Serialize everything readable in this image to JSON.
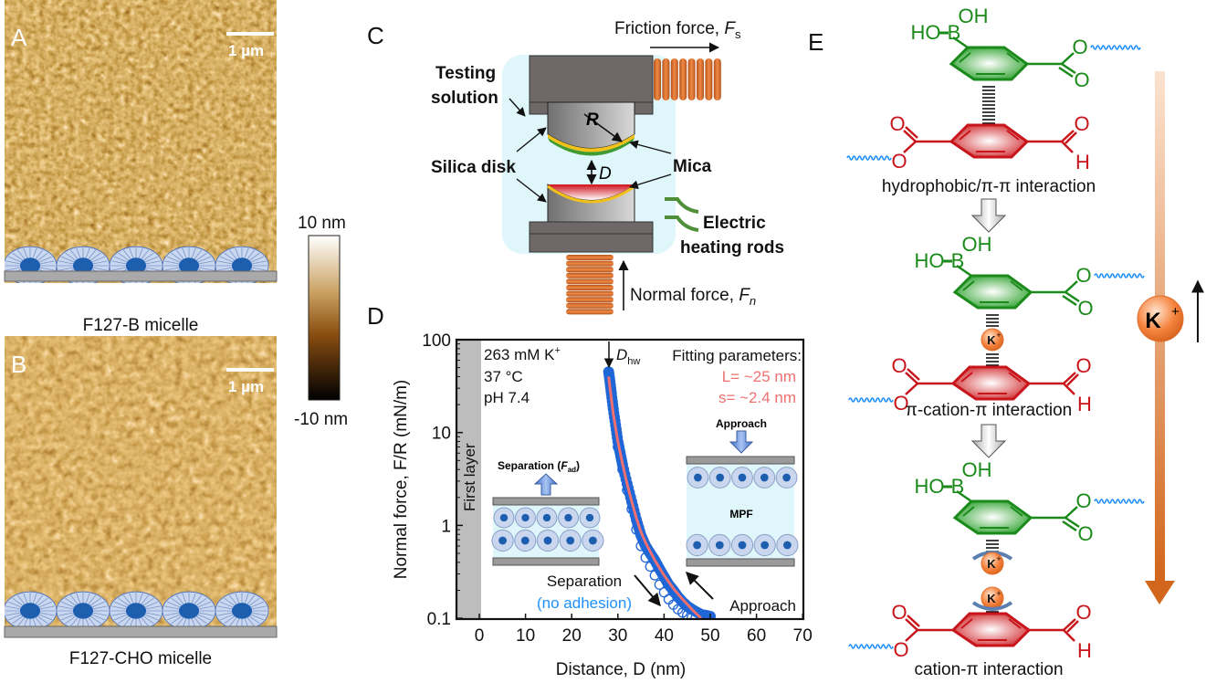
{
  "panels": {
    "A": {
      "label": "A",
      "scale_bar": "1 µm",
      "caption": "F127-B micelle"
    },
    "B": {
      "label": "B",
      "scale_bar": "1 µm",
      "caption": "F127-CHO micelle"
    },
    "colorbar": {
      "max": "10 nm",
      "min": "-10 nm",
      "colors": [
        "#ffffff",
        "#b07a2a",
        "#000000"
      ]
    },
    "C": {
      "label": "C",
      "friction": "Friction force, ",
      "friction_sym": "F",
      "friction_sub": "s",
      "testing1": "Testing",
      "testing2": "solution",
      "silica": "Silica disk",
      "mica": "Mica",
      "R": "R",
      "D": "D",
      "heating1": "Electric",
      "heating2": "heating rods",
      "normal": "Normal force, ",
      "normal_sym": "F",
      "normal_sub": "n"
    },
    "D": {
      "label": "D",
      "cond1": "263 mM K",
      "cond1_sup": "+",
      "cond2": "37 °C",
      "cond3": "pH 7.4",
      "dhw": "D",
      "dhw_sub": "hw",
      "fit_title": "Fitting parameters:",
      "fit_L": "L= ~25 nm",
      "fit_s": "s= ~2.4 nm",
      "first_layer": "First layer",
      "inset_sep": "Separation (",
      "inset_sep_sym": "F",
      "inset_sep_sub": "ad",
      "inset_sep_close": ")",
      "inset_app": "Approach",
      "mpf": "MPF",
      "sep_label": "Separation",
      "no_adhesion": "(no adhesion)",
      "app_label": "Approach"
    },
    "E": {
      "label": "E",
      "ho": "HO",
      "b": "B",
      "oh": "OH",
      "o": "O",
      "h": "H",
      "k": "K",
      "kplus": "+",
      "step1": "hydrophobic/π-π interaction",
      "step2": "π-cation-π interaction",
      "step3": "cation-π interaction",
      "colors": {
        "boronic": "#1a8a1a",
        "aldehyde": "#c8151b",
        "chain": "#1e90ff",
        "potassium": "#f07f3c"
      }
    }
  },
  "chart_data": {
    "type": "scatter",
    "xlabel": "Distance, D (nm)",
    "ylabel": "Normal force, F/R (mN/m)",
    "xlim": [
      -5,
      70
    ],
    "ylim": [
      0.1,
      100
    ],
    "yscale": "log",
    "xticks": [
      "0",
      "10",
      "20",
      "30",
      "40",
      "50",
      "60",
      "70"
    ],
    "xtick_values": [
      0,
      10,
      20,
      30,
      40,
      50,
      60,
      70
    ],
    "yticks": [
      "0.1",
      "1",
      "10",
      "100"
    ],
    "ytick_values": [
      0.1,
      1,
      10,
      100
    ],
    "grid": false,
    "series": [
      {
        "name": "Approach",
        "style": "filled",
        "color": "#1f66d6",
        "x": [
          28,
          28.3,
          28.6,
          29,
          29.5,
          30,
          30.5,
          31,
          32,
          33,
          34,
          35,
          36,
          37,
          38,
          39,
          40,
          41,
          42,
          43,
          44,
          45,
          46,
          48,
          50
        ],
        "y": [
          45,
          35,
          26,
          18,
          12,
          8,
          6,
          4.5,
          2.8,
          1.8,
          1.15,
          0.78,
          0.6,
          0.5,
          0.42,
          0.34,
          0.28,
          0.23,
          0.2,
          0.17,
          0.15,
          0.135,
          0.125,
          0.11,
          0.105
        ]
      },
      {
        "name": "Separation",
        "style": "open",
        "color": "#1f66d6",
        "x": [
          30,
          31,
          32,
          33,
          34,
          35,
          36,
          37,
          38,
          39,
          40,
          41,
          42,
          43,
          44,
          45,
          46
        ],
        "y": [
          7,
          4,
          2.4,
          1.5,
          0.9,
          0.6,
          0.45,
          0.36,
          0.29,
          0.23,
          0.19,
          0.16,
          0.14,
          0.125,
          0.115,
          0.108,
          0.102
        ]
      },
      {
        "name": "Fit",
        "style": "line",
        "color": "#f07070",
        "x": [
          28,
          28.5,
          29,
          30,
          31,
          32,
          33,
          34,
          35,
          36,
          38,
          40,
          42,
          44,
          46,
          48
        ],
        "y": [
          40,
          25,
          16,
          8,
          4.6,
          2.8,
          1.8,
          1.2,
          0.85,
          0.65,
          0.42,
          0.29,
          0.21,
          0.16,
          0.125,
          0.1
        ]
      }
    ]
  }
}
